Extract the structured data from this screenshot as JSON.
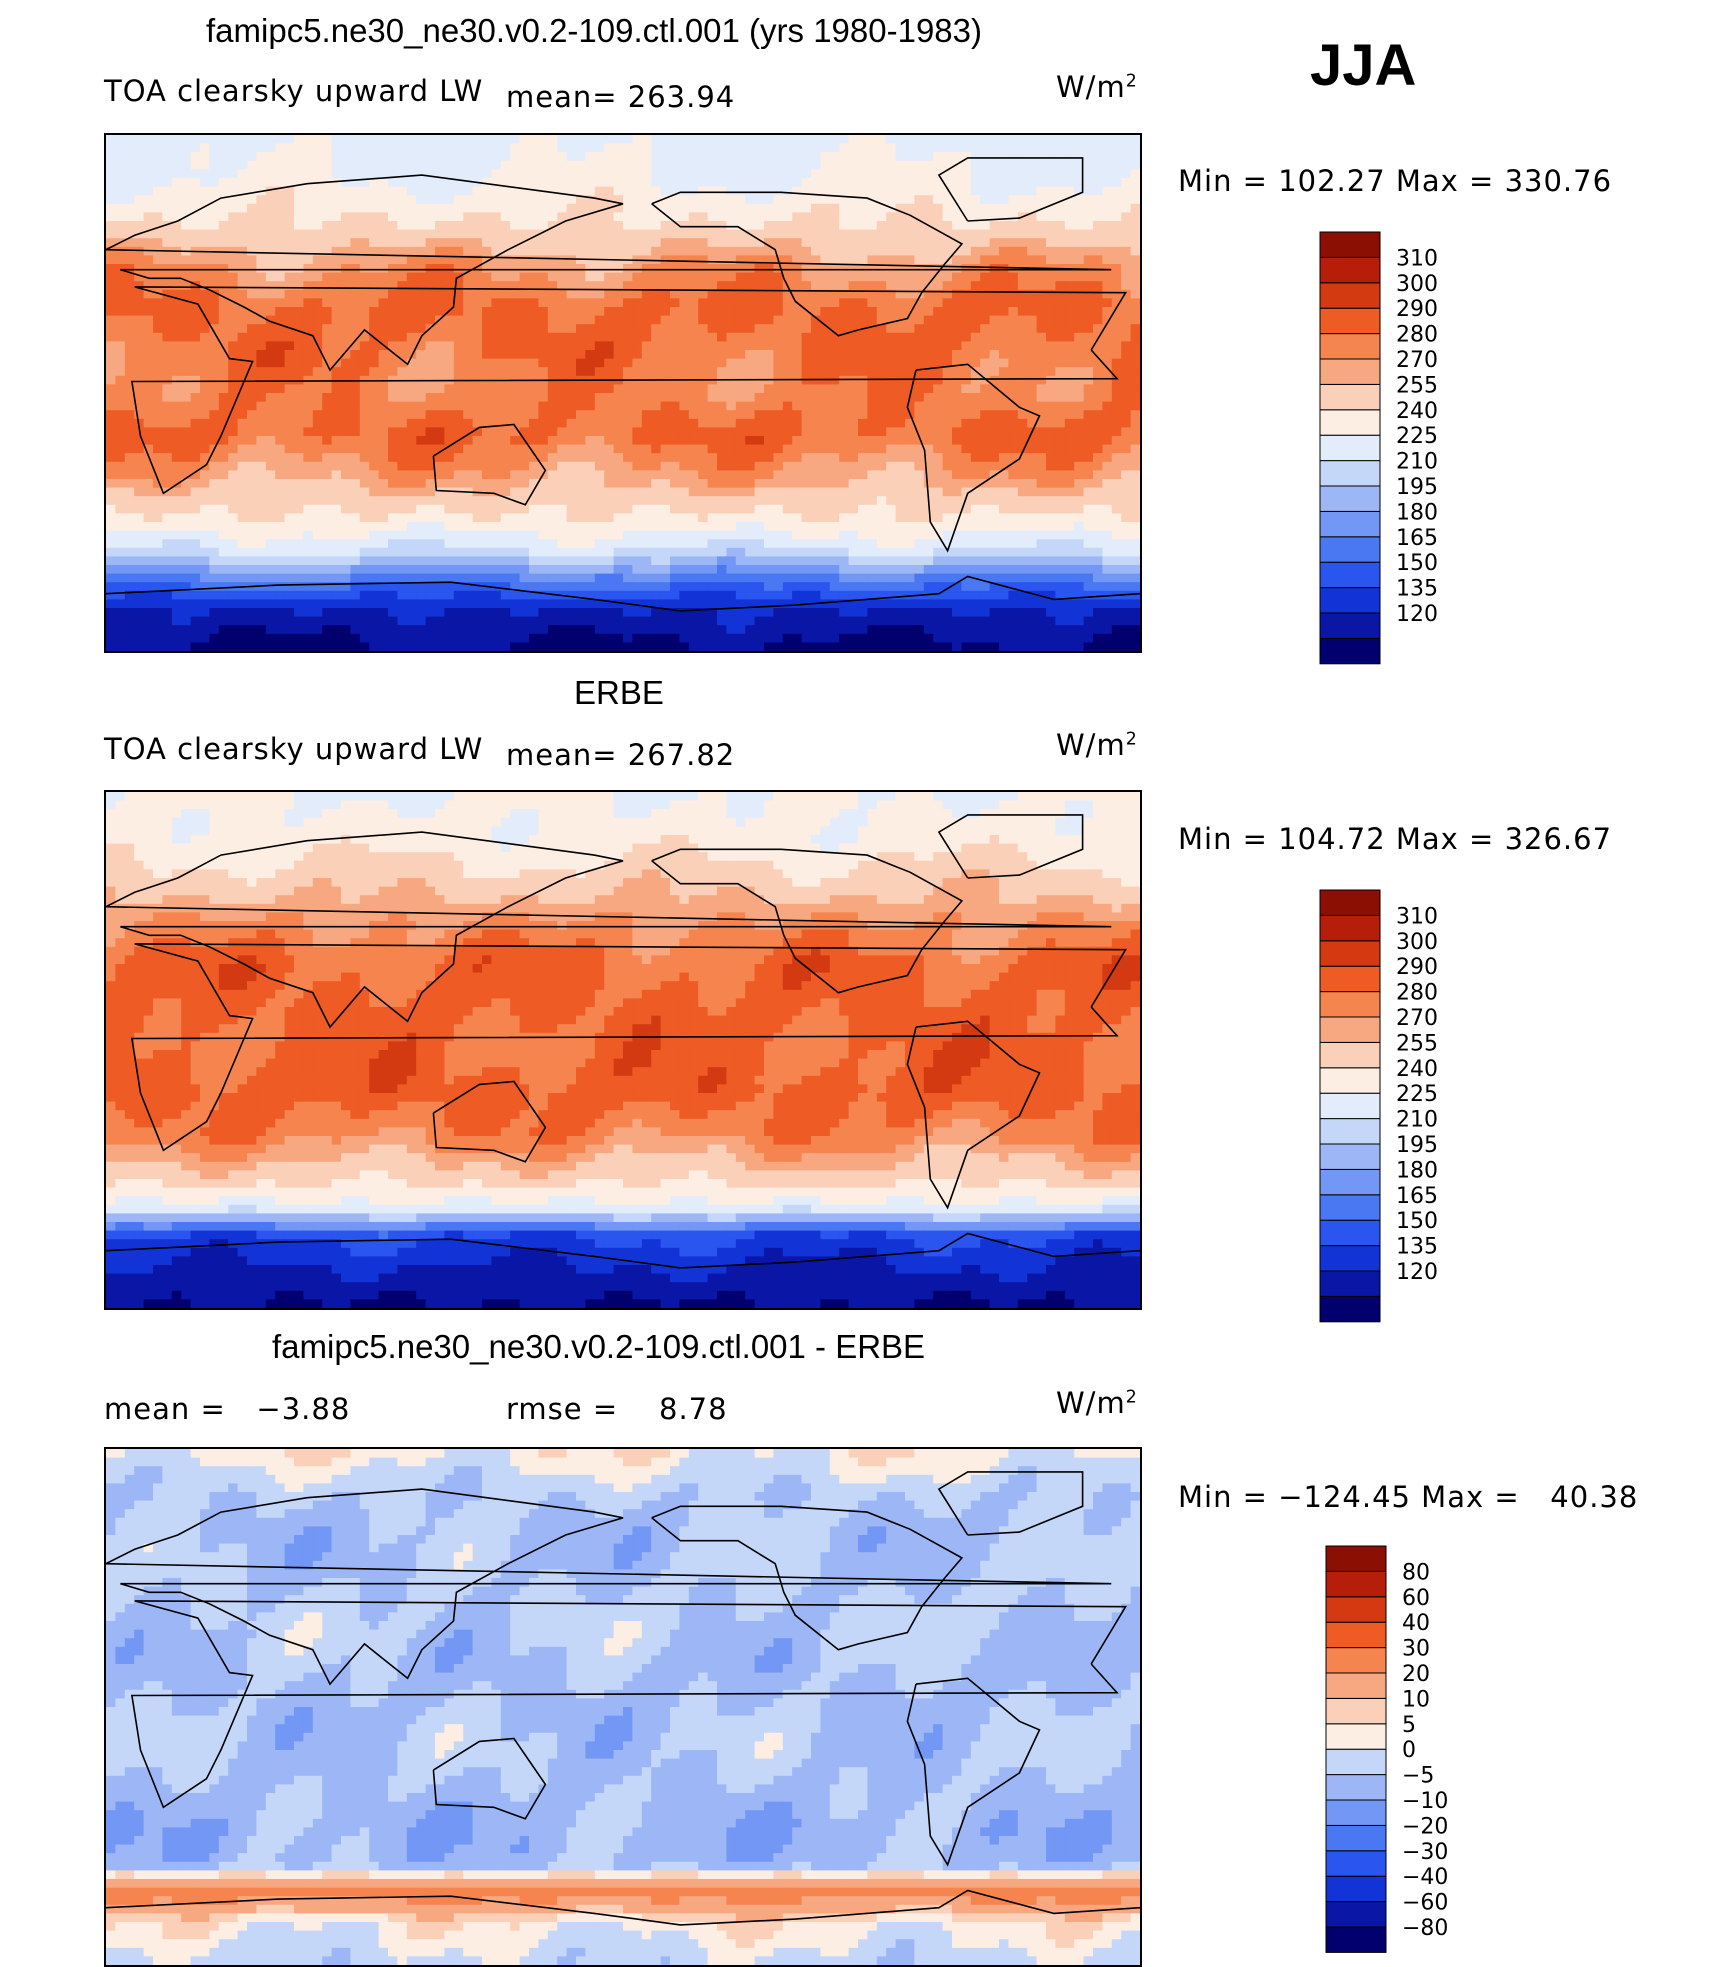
{
  "season": "JJA",
  "panels": [
    {
      "title": "famipc5.ne30_ne30.v0.2-109.ctl.001 (yrs 1980-1983)",
      "left_label": "TOA clearsky upward LW",
      "center_label": "mean= 263.94",
      "units": "W/m",
      "units_sup": "2",
      "minmax": "Min = 102.27 Max = 330.76"
    },
    {
      "title": "ERBE",
      "left_label": "TOA clearsky upward LW",
      "center_label": "mean= 267.82",
      "units": "W/m",
      "units_sup": "2",
      "minmax": "Min = 104.72 Max = 326.67"
    },
    {
      "title": "famipc5.ne30_ne30.v0.2-109.ctl.001 - ERBE",
      "left_label": "mean =   −3.88",
      "center_label": "rmse =    8.78",
      "units": "W/m",
      "units_sup": "2",
      "minmax": "Min = −124.45 Max =   40.38"
    }
  ],
  "colors": {
    "abs_scale": [
      "#02006e",
      "#0a17a6",
      "#1234d6",
      "#2a55ef",
      "#4a78f3",
      "#7397f4",
      "#9db7f6",
      "#c4d7f8",
      "#e2ecfb",
      "#fdeee3",
      "#fbd0b8",
      "#f8a880",
      "#f5844f",
      "#ee5b24",
      "#d43a12",
      "#b61e0a",
      "#8c0f04"
    ],
    "diff_scale": [
      "#02006e",
      "#0a17a6",
      "#1234d6",
      "#2a55ef",
      "#4a78f3",
      "#7397f4",
      "#9db7f6",
      "#c4d7f8",
      "#fdeee3",
      "#fbd0b8",
      "#f8a880",
      "#f5844f",
      "#ee5b24",
      "#d43a12",
      "#b61e0a",
      "#8c0f04"
    ]
  },
  "chart_data": [
    {
      "type": "heatmap",
      "title": "famipc5.ne30_ne30.v0.2-109.ctl.001 (yrs 1980-1983)",
      "variable": "TOA clearsky upward LW",
      "mean": 263.94,
      "units": "W/m2",
      "min": 102.27,
      "max": 330.76,
      "colorbar_levels": [
        "310",
        "300",
        "290",
        "280",
        "270",
        "255",
        "240",
        "225",
        "210",
        "195",
        "180",
        "165",
        "150",
        "135",
        "120"
      ],
      "zonal_profile_south_to_north": [
        {
          "lat": -90,
          "value": 115
        },
        {
          "lat": -75,
          "value": 135
        },
        {
          "lat": -65,
          "value": 175
        },
        {
          "lat": -55,
          "value": 225
        },
        {
          "lat": -45,
          "value": 250
        },
        {
          "lat": -30,
          "value": 275
        },
        {
          "lat": -15,
          "value": 292
        },
        {
          "lat": 0,
          "value": 285
        },
        {
          "lat": 15,
          "value": 290
        },
        {
          "lat": 30,
          "value": 292
        },
        {
          "lat": 45,
          "value": 278
        },
        {
          "lat": 60,
          "value": 255
        },
        {
          "lat": 75,
          "value": 240
        },
        {
          "lat": 90,
          "value": 235
        }
      ]
    },
    {
      "type": "heatmap",
      "title": "ERBE",
      "variable": "TOA clearsky upward LW",
      "mean": 267.82,
      "units": "W/m2",
      "min": 104.72,
      "max": 326.67,
      "colorbar_levels": [
        "310",
        "300",
        "290",
        "280",
        "270",
        "255",
        "240",
        "225",
        "210",
        "195",
        "180",
        "165",
        "150",
        "135",
        "120"
      ],
      "zonal_profile_south_to_north": [
        {
          "lat": -90,
          "value": 118
        },
        {
          "lat": -75,
          "value": 135
        },
        {
          "lat": -65,
          "value": 150
        },
        {
          "lat": -55,
          "value": 235
        },
        {
          "lat": -45,
          "value": 260
        },
        {
          "lat": -30,
          "value": 285
        },
        {
          "lat": -15,
          "value": 295
        },
        {
          "lat": 0,
          "value": 292
        },
        {
          "lat": 15,
          "value": 293
        },
        {
          "lat": 30,
          "value": 292
        },
        {
          "lat": 45,
          "value": 280
        },
        {
          "lat": 60,
          "value": 262
        },
        {
          "lat": 75,
          "value": 245
        },
        {
          "lat": 90,
          "value": 240
        }
      ]
    },
    {
      "type": "heatmap",
      "title": "famipc5.ne30_ne30.v0.2-109.ctl.001 - ERBE",
      "mean": -3.88,
      "rmse": 8.78,
      "units": "W/m2",
      "min": -124.45,
      "max": 40.38,
      "colorbar_levels": [
        "80",
        "60",
        "40",
        "30",
        "20",
        "10",
        "5",
        "0",
        "−5",
        "−10",
        "−20",
        "−30",
        "−40",
        "−60",
        "−80"
      ],
      "zonal_profile_south_to_north": [
        {
          "lat": -90,
          "value": -3
        },
        {
          "lat": -75,
          "value": 3
        },
        {
          "lat": -65,
          "value": 25
        },
        {
          "lat": -55,
          "value": -7
        },
        {
          "lat": -45,
          "value": -8
        },
        {
          "lat": -30,
          "value": -6
        },
        {
          "lat": -15,
          "value": -5
        },
        {
          "lat": 0,
          "value": -6
        },
        {
          "lat": 15,
          "value": -6
        },
        {
          "lat": 30,
          "value": -4
        },
        {
          "lat": 45,
          "value": -5
        },
        {
          "lat": 60,
          "value": -6
        },
        {
          "lat": 75,
          "value": -4
        },
        {
          "lat": 90,
          "value": 3
        }
      ]
    }
  ]
}
